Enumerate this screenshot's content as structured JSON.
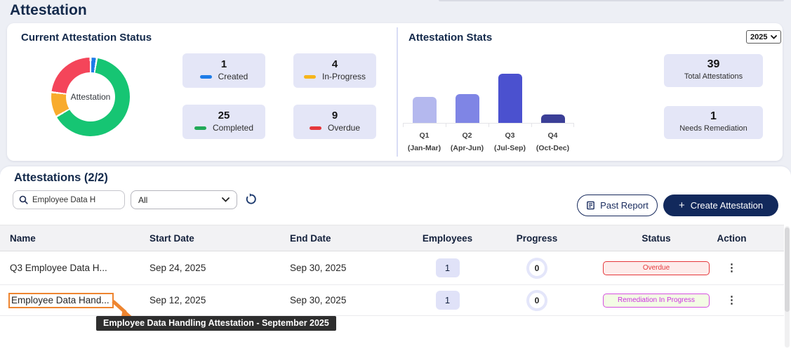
{
  "page": {
    "title": "Attestation"
  },
  "colors": {
    "accent_navy": "#12295c",
    "created_blue": "#1e7ce8",
    "in_progress_yellow": "#f6b51b",
    "completed_green": "#22a958",
    "overdue_red": "#e5383b",
    "remediation_magenta": "#cb30e0",
    "card_lavender": "#e4e6f7",
    "annotation_orange": "#ee8530"
  },
  "status_panel": {
    "title": "Current Attestation Status",
    "cards": [
      {
        "value": "1",
        "label": "Created",
        "color": "#1e7ce8"
      },
      {
        "value": "4",
        "label": "In-Progress",
        "color": "#f6b51b"
      },
      {
        "value": "25",
        "label": "Completed",
        "color": "#22a958"
      },
      {
        "value": "9",
        "label": "Overdue",
        "color": "#e5383b"
      }
    ]
  },
  "stats_panel": {
    "title": "Attestation Stats",
    "year": "2025",
    "summary_cards": [
      {
        "value": "39",
        "label": "Total Attestations"
      },
      {
        "value": "1",
        "label": "Needs Remediation"
      }
    ]
  },
  "chart_data": [
    {
      "type": "pie",
      "title": "Current Attestation Status",
      "center_label": "Attestation",
      "total": 39,
      "segments": [
        {
          "label": "Created",
          "value": 1,
          "color": "#1e7ce8"
        },
        {
          "label": "Completed",
          "value": 25,
          "color": "#16c573"
        },
        {
          "label": "In-Progress",
          "value": 4,
          "color": "#f8ab2d"
        },
        {
          "label": "Overdue",
          "value": 9,
          "color": "#f4455a"
        }
      ]
    },
    {
      "type": "bar",
      "title": "Attestation Stats",
      "year_filter": "2025",
      "categories": [
        {
          "label": "Q1",
          "sublabel": "(Jan-Mar)"
        },
        {
          "label": "Q2",
          "sublabel": "(Apr-Jun)"
        },
        {
          "label": "Q3",
          "sublabel": "(Jul-Sep)"
        },
        {
          "label": "Q4",
          "sublabel": "(Oct-Dec)"
        }
      ],
      "values": [
        9,
        10,
        17,
        3
      ],
      "colors": [
        "#b4b8ee",
        "#7f85e5",
        "#4b51cf",
        "#3b3f97"
      ],
      "ylim": [
        0,
        17
      ],
      "grid": false,
      "legend": false
    }
  ],
  "table_section": {
    "title": "Attestations (2/2)",
    "search_value": "Employee Data H",
    "filter_value": "All",
    "past_report_label": "Past Report",
    "create_plus": "+",
    "create_label": "Create Attestation",
    "columns": [
      "Name",
      "Start Date",
      "End Date",
      "Employees",
      "Progress",
      "Status",
      "Action"
    ],
    "rows": [
      {
        "name": "Q3 Employee Data H...",
        "start_date": "Sep 24, 2025",
        "end_date": "Sep 30, 2025",
        "employees": "1",
        "progress": "0",
        "status": "Overdue",
        "status_variant": "overdue"
      },
      {
        "name": "Employee Data Hand...",
        "start_date": "Sep 12, 2025",
        "end_date": "Sep 30, 2025",
        "employees": "1",
        "progress": "0",
        "status": "Remediation In Progress",
        "status_variant": "remediation"
      }
    ],
    "tooltip": "Employee Data Handling Attestation - September 2025"
  }
}
